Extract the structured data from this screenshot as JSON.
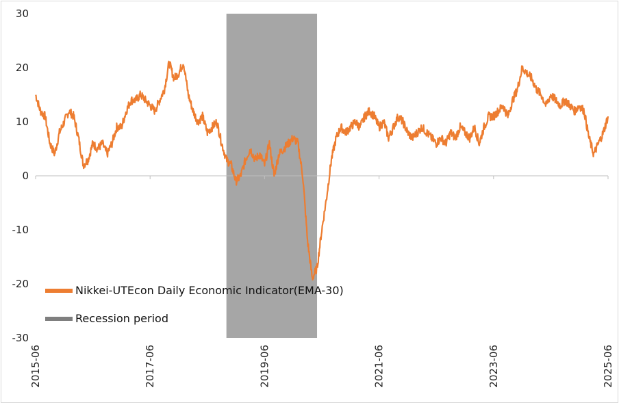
{
  "chart_data": {
    "type": "line",
    "title": "",
    "xlabel": "",
    "ylabel": "",
    "ylim": [
      -30,
      30
    ],
    "y_ticks": [
      30,
      20,
      10,
      0,
      -10,
      -20,
      -30
    ],
    "x_ticks": [
      "2015-06",
      "2017-06",
      "2019-06",
      "2021-06",
      "2023-06",
      "2025-06"
    ],
    "recession": {
      "label": "Recession period",
      "start": "2018-10",
      "end": "2020-05",
      "color": "#a6a6a6"
    },
    "legend_position": "lower-left",
    "series": [
      {
        "name": "Nikkei-UTEcon Daily Economic Indicator(EMA-30)",
        "color": "#ed7d31",
        "points": [
          [
            "2015-06",
            15
          ],
          [
            "2015-07",
            12
          ],
          [
            "2015-08",
            11
          ],
          [
            "2015-09",
            6
          ],
          [
            "2015-10",
            4
          ],
          [
            "2015-11",
            8
          ],
          [
            "2015-12",
            10
          ],
          [
            "2016-01",
            12
          ],
          [
            "2016-02",
            11
          ],
          [
            "2016-03",
            7
          ],
          [
            "2016-04",
            2
          ],
          [
            "2016-05",
            3
          ],
          [
            "2016-06",
            6
          ],
          [
            "2016-07",
            5
          ],
          [
            "2016-08",
            6
          ],
          [
            "2016-09",
            4
          ],
          [
            "2016-10",
            6
          ],
          [
            "2016-11",
            9
          ],
          [
            "2016-12",
            9
          ],
          [
            "2017-01",
            12
          ],
          [
            "2017-02",
            14
          ],
          [
            "2017-03",
            14
          ],
          [
            "2017-04",
            15
          ],
          [
            "2017-05",
            14
          ],
          [
            "2017-06",
            13
          ],
          [
            "2017-07",
            12
          ],
          [
            "2017-08",
            14
          ],
          [
            "2017-09",
            16
          ],
          [
            "2017-10",
            21
          ],
          [
            "2017-11",
            18
          ],
          [
            "2017-12",
            19
          ],
          [
            "2018-01",
            21
          ],
          [
            "2018-02",
            15
          ],
          [
            "2018-03",
            12
          ],
          [
            "2018-04",
            10
          ],
          [
            "2018-05",
            11
          ],
          [
            "2018-06",
            8
          ],
          [
            "2018-07",
            9
          ],
          [
            "2018-08",
            10
          ],
          [
            "2018-09",
            6
          ],
          [
            "2018-10",
            3
          ],
          [
            "2018-11",
            2
          ],
          [
            "2018-12",
            -1
          ],
          [
            "2019-01",
            0
          ],
          [
            "2019-02",
            3
          ],
          [
            "2019-03",
            5
          ],
          [
            "2019-04",
            3
          ],
          [
            "2019-05",
            4
          ],
          [
            "2019-06",
            2
          ],
          [
            "2019-07",
            6
          ],
          [
            "2019-08",
            0
          ],
          [
            "2019-09",
            4
          ],
          [
            "2019-10",
            5
          ],
          [
            "2019-11",
            6
          ],
          [
            "2019-12",
            7
          ],
          [
            "2020-01",
            6
          ],
          [
            "2020-02",
            0
          ],
          [
            "2020-03",
            -12
          ],
          [
            "2020-04",
            -19
          ],
          [
            "2020-05",
            -17
          ],
          [
            "2020-06",
            -10
          ],
          [
            "2020-07",
            -4
          ],
          [
            "2020-08",
            3
          ],
          [
            "2020-09",
            7
          ],
          [
            "2020-10",
            9
          ],
          [
            "2020-11",
            8
          ],
          [
            "2020-12",
            9
          ],
          [
            "2021-01",
            10
          ],
          [
            "2021-02",
            9
          ],
          [
            "2021-03",
            11
          ],
          [
            "2021-04",
            12
          ],
          [
            "2021-05",
            11
          ],
          [
            "2021-06",
            9
          ],
          [
            "2021-07",
            10
          ],
          [
            "2021-08",
            7
          ],
          [
            "2021-09",
            9
          ],
          [
            "2021-10",
            11
          ],
          [
            "2021-11",
            10
          ],
          [
            "2021-12",
            8
          ],
          [
            "2022-01",
            7
          ],
          [
            "2022-02",
            8
          ],
          [
            "2022-03",
            9
          ],
          [
            "2022-04",
            8
          ],
          [
            "2022-05",
            7
          ],
          [
            "2022-06",
            6
          ],
          [
            "2022-07",
            7
          ],
          [
            "2022-08",
            6
          ],
          [
            "2022-09",
            8
          ],
          [
            "2022-10",
            7
          ],
          [
            "2022-11",
            9
          ],
          [
            "2022-12",
            8
          ],
          [
            "2023-01",
            7
          ],
          [
            "2023-02",
            9
          ],
          [
            "2023-03",
            6
          ],
          [
            "2023-04",
            9
          ],
          [
            "2023-05",
            11
          ],
          [
            "2023-06",
            11
          ],
          [
            "2023-07",
            12
          ],
          [
            "2023-08",
            13
          ],
          [
            "2023-09",
            11
          ],
          [
            "2023-10",
            14
          ],
          [
            "2023-11",
            16
          ],
          [
            "2023-12",
            20
          ],
          [
            "2024-01",
            19
          ],
          [
            "2024-02",
            18
          ],
          [
            "2024-03",
            16
          ],
          [
            "2024-04",
            15
          ],
          [
            "2024-05",
            13
          ],
          [
            "2024-06",
            15
          ],
          [
            "2024-07",
            14
          ],
          [
            "2024-08",
            13
          ],
          [
            "2024-09",
            14
          ],
          [
            "2024-10",
            13
          ],
          [
            "2024-11",
            12
          ],
          [
            "2024-12",
            13
          ],
          [
            "2025-01",
            12
          ],
          [
            "2025-02",
            7
          ],
          [
            "2025-03",
            4
          ],
          [
            "2025-04",
            6
          ],
          [
            "2025-05",
            8
          ],
          [
            "2025-06",
            11
          ]
        ]
      }
    ]
  }
}
